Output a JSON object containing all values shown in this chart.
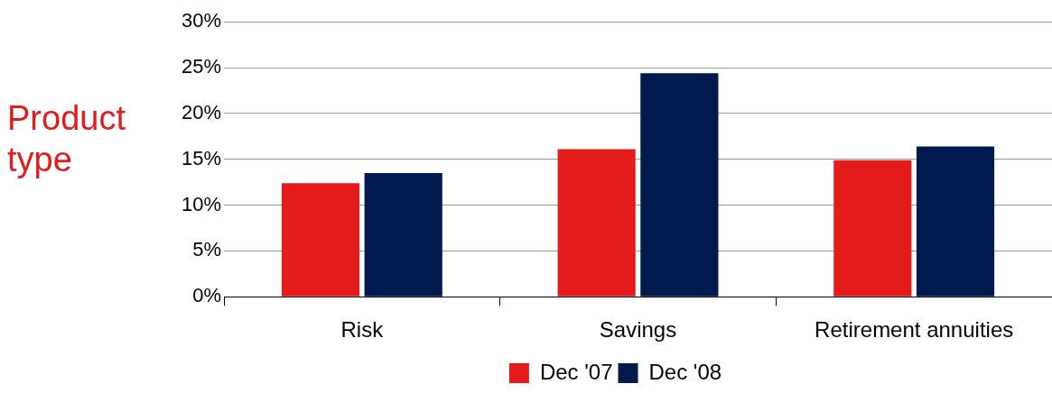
{
  "chart_data": {
    "type": "bar",
    "ylabel": "Product type",
    "categories": [
      "Risk",
      "Savings",
      "Retirement annuities"
    ],
    "series": [
      {
        "name": "Dec '07",
        "color": "#e31b1b",
        "values": [
          12.4,
          16.1,
          14.9
        ]
      },
      {
        "name": "Dec '08",
        "color": "#001a4d",
        "values": [
          13.5,
          24.4,
          16.4
        ]
      }
    ],
    "ylim": [
      0,
      30
    ],
    "yticks": [
      {
        "value": 0,
        "label": "0%"
      },
      {
        "value": 5,
        "label": "5%"
      },
      {
        "value": 10,
        "label": "10%"
      },
      {
        "value": 15,
        "label": "15%"
      },
      {
        "value": 20,
        "label": "20%"
      },
      {
        "value": 25,
        "label": "25%"
      },
      {
        "value": 30,
        "label": "30%"
      }
    ],
    "grid": "y",
    "legend": "bottom"
  }
}
